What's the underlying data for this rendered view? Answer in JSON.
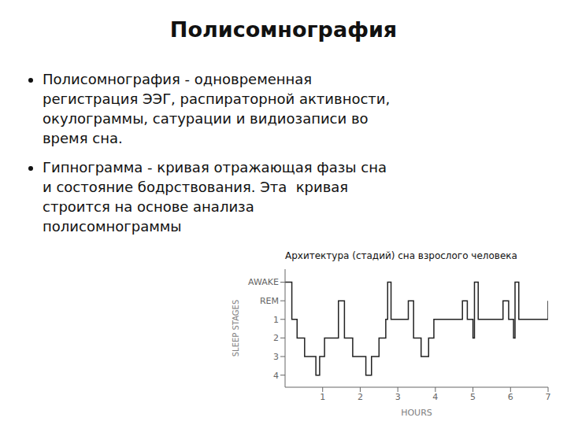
{
  "chart_data": {
    "type": "step",
    "title": "Полисомнография",
    "subtitle": "Архитектура (стадий) сна взрослого человека",
    "annotations": [
      [
        "Полисомнография - одновременная",
        "регистрация ЭЭГ, распираторной активности,",
        "окулограммы, сатурации и видиозаписи во",
        "время сна."
      ],
      [
        "Гипнограмма - кривая отражающая фазы сна",
        "и состояние бодрствования. Эта  кривая",
        "строится на основе анализа",
        "полисомнограммы"
      ]
    ],
    "xlabel": "HOURS",
    "ylabel": "SLEEP STAGES",
    "x": [
      0,
      0.08,
      0.18,
      0.32,
      0.52,
      0.82,
      0.92,
      1.05,
      1.42,
      1.58,
      1.8,
      2.15,
      2.3,
      2.5,
      2.68,
      2.73,
      2.82,
      3.28,
      3.42,
      3.62,
      3.82,
      3.96,
      4.72,
      4.85,
      5.0,
      5.04,
      5.14,
      5.8,
      5.95,
      6.08,
      6.12,
      6.22,
      7.0
    ],
    "values": [
      -1,
      -1,
      1,
      2,
      3,
      4,
      3,
      2,
      0,
      2,
      3,
      4,
      3,
      2,
      1,
      -1,
      1,
      0,
      2,
      3,
      2,
      1,
      0,
      1,
      2,
      -1,
      1,
      0,
      1,
      2,
      -1,
      1,
      0
    ],
    "color": "#222222",
    "xlim": [
      0,
      7
    ],
    "xticks": [
      1,
      2,
      3,
      4,
      5,
      6,
      7
    ],
    "ylim": [
      4.65,
      -1.7
    ],
    "yticks": [
      {
        "value": -1,
        "label": "AWAKE"
      },
      {
        "value": 0,
        "label": "REM"
      },
      1,
      2,
      3,
      4
    ],
    "grid": false
  }
}
